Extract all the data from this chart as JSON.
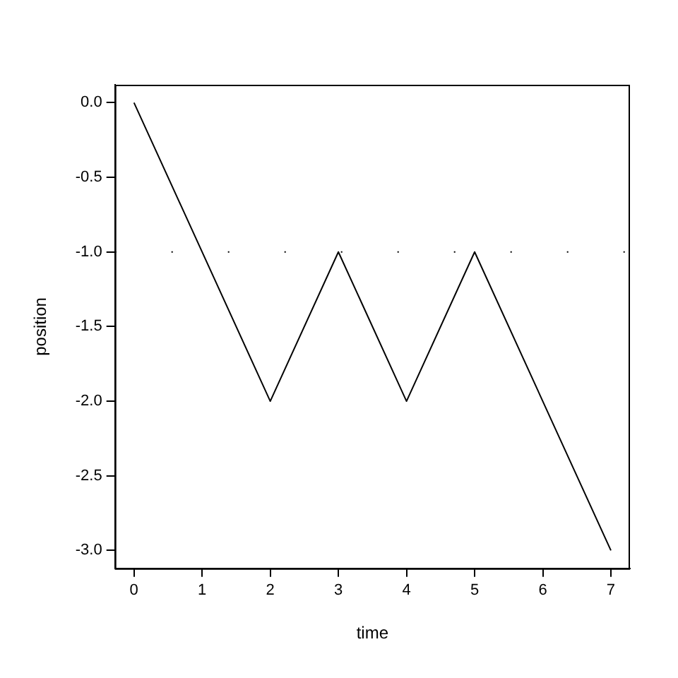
{
  "chart_data": {
    "type": "line",
    "x": [
      0,
      2,
      3,
      4,
      5,
      7
    ],
    "values": [
      0,
      -2,
      -1,
      -2,
      -1,
      -3
    ],
    "color": "#000000",
    "xlabel": "time",
    "ylabel": "position",
    "xlim": [
      -0.28,
      7.28
    ],
    "ylim": [
      -3.12,
      0.12
    ],
    "xticks": [
      0,
      1,
      2,
      3,
      4,
      5,
      6,
      7
    ],
    "yticks": [
      {
        "value": 0,
        "label": "0.0"
      },
      -0.5,
      {
        "value": -1,
        "label": "-1.0"
      },
      -1.5,
      {
        "value": -2,
        "label": "-2.0"
      },
      -2.5,
      {
        "value": -3,
        "label": "-3.0"
      }
    ],
    "ref_lines": [
      {
        "axis": "y",
        "value": -1,
        "color": "#000000",
        "line_style": "dotted"
      }
    ]
  }
}
